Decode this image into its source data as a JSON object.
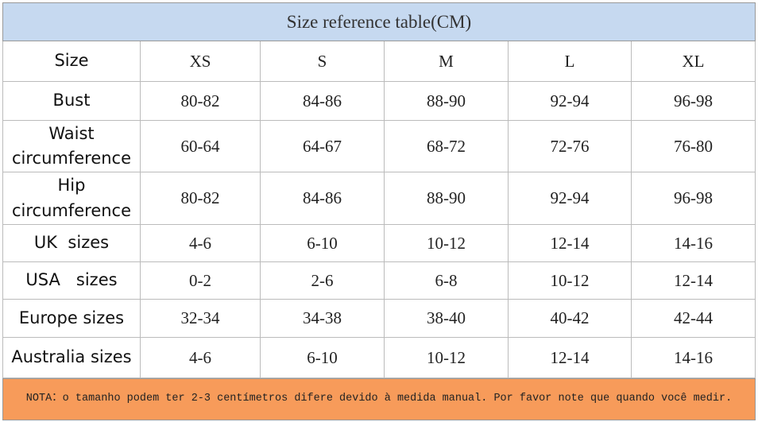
{
  "title": "Size reference table(CM)",
  "table": {
    "header": [
      "Size",
      "XS",
      "S",
      "M",
      "L",
      "XL"
    ],
    "rows": [
      [
        "Bust",
        "80-82",
        "84-86",
        "88-90",
        "92-94",
        "96-98"
      ],
      [
        "Waist circumference",
        "60-64",
        "64-67",
        "68-72",
        "72-76",
        "76-80"
      ],
      [
        "Hip circumference",
        "80-82",
        "84-86",
        "88-90",
        "92-94",
        "96-98"
      ],
      [
        "UK  sizes",
        "4-6",
        "6-10",
        "10-12",
        "12-14",
        "14-16"
      ],
      [
        "USA   sizes",
        "0-2",
        "2-6",
        "6-8",
        "10-12",
        "12-14"
      ],
      [
        "Europe sizes",
        "32-34",
        "34-38",
        "38-40",
        "40-42",
        "42-44"
      ],
      [
        "Australia sizes",
        "4-6",
        "6-10",
        "10-12",
        "12-14",
        "14-16"
      ]
    ]
  },
  "note": "NOTA：o tamanho podem ter 2-3 centímetros difere devido à medida manual. Por favor note que quando você medir."
}
